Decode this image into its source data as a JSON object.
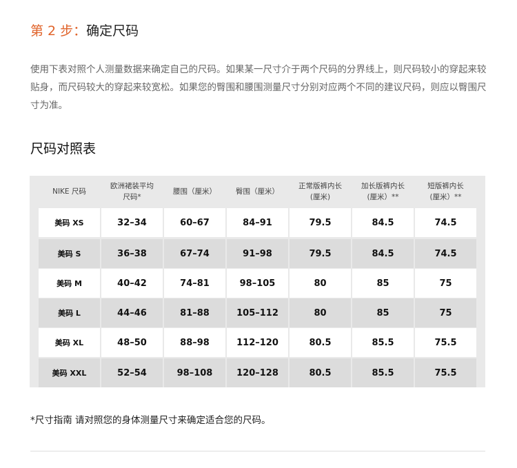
{
  "step": {
    "prefix": "第 2 步：",
    "title": "确定尺码"
  },
  "intro": "使用下表对照个人测量数据来确定自己的尺码。如果某一尺寸介于两个尺码的分界线上，则尺码较小的穿起来较贴身，而尺码较大的穿起来较宽松。如果您的臀围和腰围测量尺寸分别对应两个不同的建议尺码，则应以臀围尺寸为准。",
  "table_title": "尺码对照表",
  "table": {
    "headers": [
      "NIKE 尺码",
      "欧洲裙装平均\n尺码*",
      "腰围（厘米）",
      "臀围（厘米）",
      "正常版裤内长\n(厘米)",
      "加长版裤内长\n(厘米）**",
      "短版裤内长\n(厘米）**"
    ],
    "rows": [
      [
        "美码 XS",
        "32–34",
        "60–67",
        "84–91",
        "79.5",
        "84.5",
        "74.5"
      ],
      [
        "美码 S",
        "36–38",
        "67–74",
        "91–98",
        "79.5",
        "84.5",
        "74.5"
      ],
      [
        "美码 M",
        "40–42",
        "74–81",
        "98–105",
        "80",
        "85",
        "75"
      ],
      [
        "美码 L",
        "44–46",
        "81–88",
        "105–112",
        "80",
        "85",
        "75"
      ],
      [
        "美码 XL",
        "48–50",
        "88–98",
        "112–120",
        "80.5",
        "85.5",
        "75.5"
      ],
      [
        "美码 XXL",
        "52–54",
        "98–108",
        "120–128",
        "80.5",
        "85.5",
        "75.5"
      ]
    ]
  },
  "note": "*尺寸指南 请对照您的身体测量尺寸来确定适合您的尺码。"
}
